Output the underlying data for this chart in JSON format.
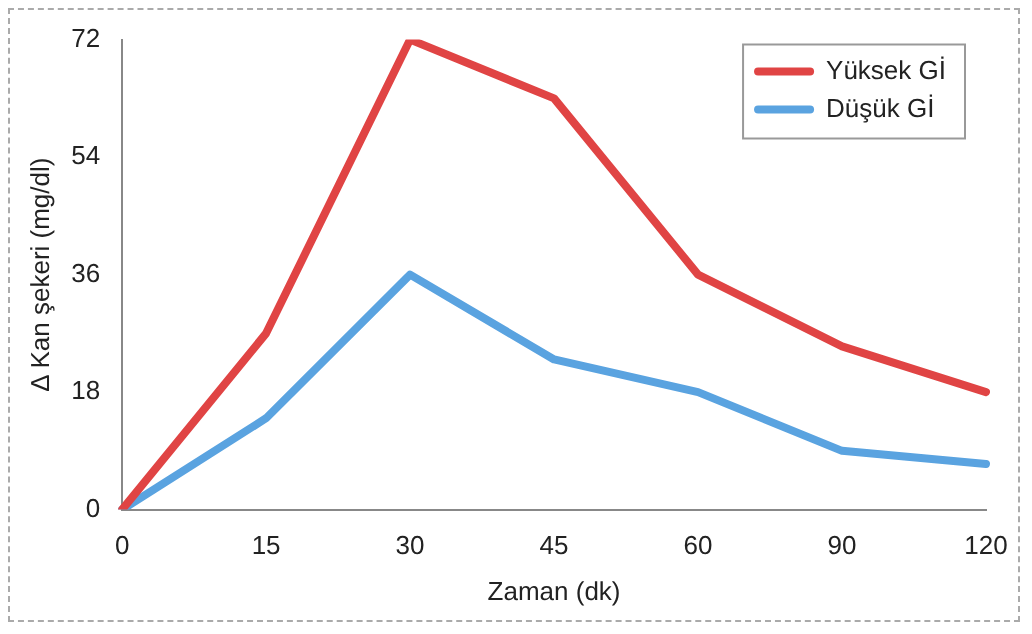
{
  "chart_data": {
    "type": "line",
    "xlabel": "Zaman (dk)",
    "ylabel": "Δ Kan şekeri (mg/dl)",
    "categories": [
      "0",
      "15",
      "30",
      "45",
      "60",
      "90",
      "120"
    ],
    "series": [
      {
        "name": "Yüksek Gİ",
        "color": "#e04444",
        "values": [
          0,
          27,
          72,
          63,
          36,
          25,
          18
        ]
      },
      {
        "name": "Düşük Gİ",
        "color": "#5aa3e0",
        "values": [
          0,
          14,
          36,
          23,
          18,
          9,
          7
        ]
      }
    ],
    "ylim": [
      0,
      72
    ],
    "yticks": [
      0,
      18,
      36,
      54,
      72
    ],
    "grid": false,
    "legend": "top right",
    "marker": "none",
    "line_style": "solid"
  }
}
